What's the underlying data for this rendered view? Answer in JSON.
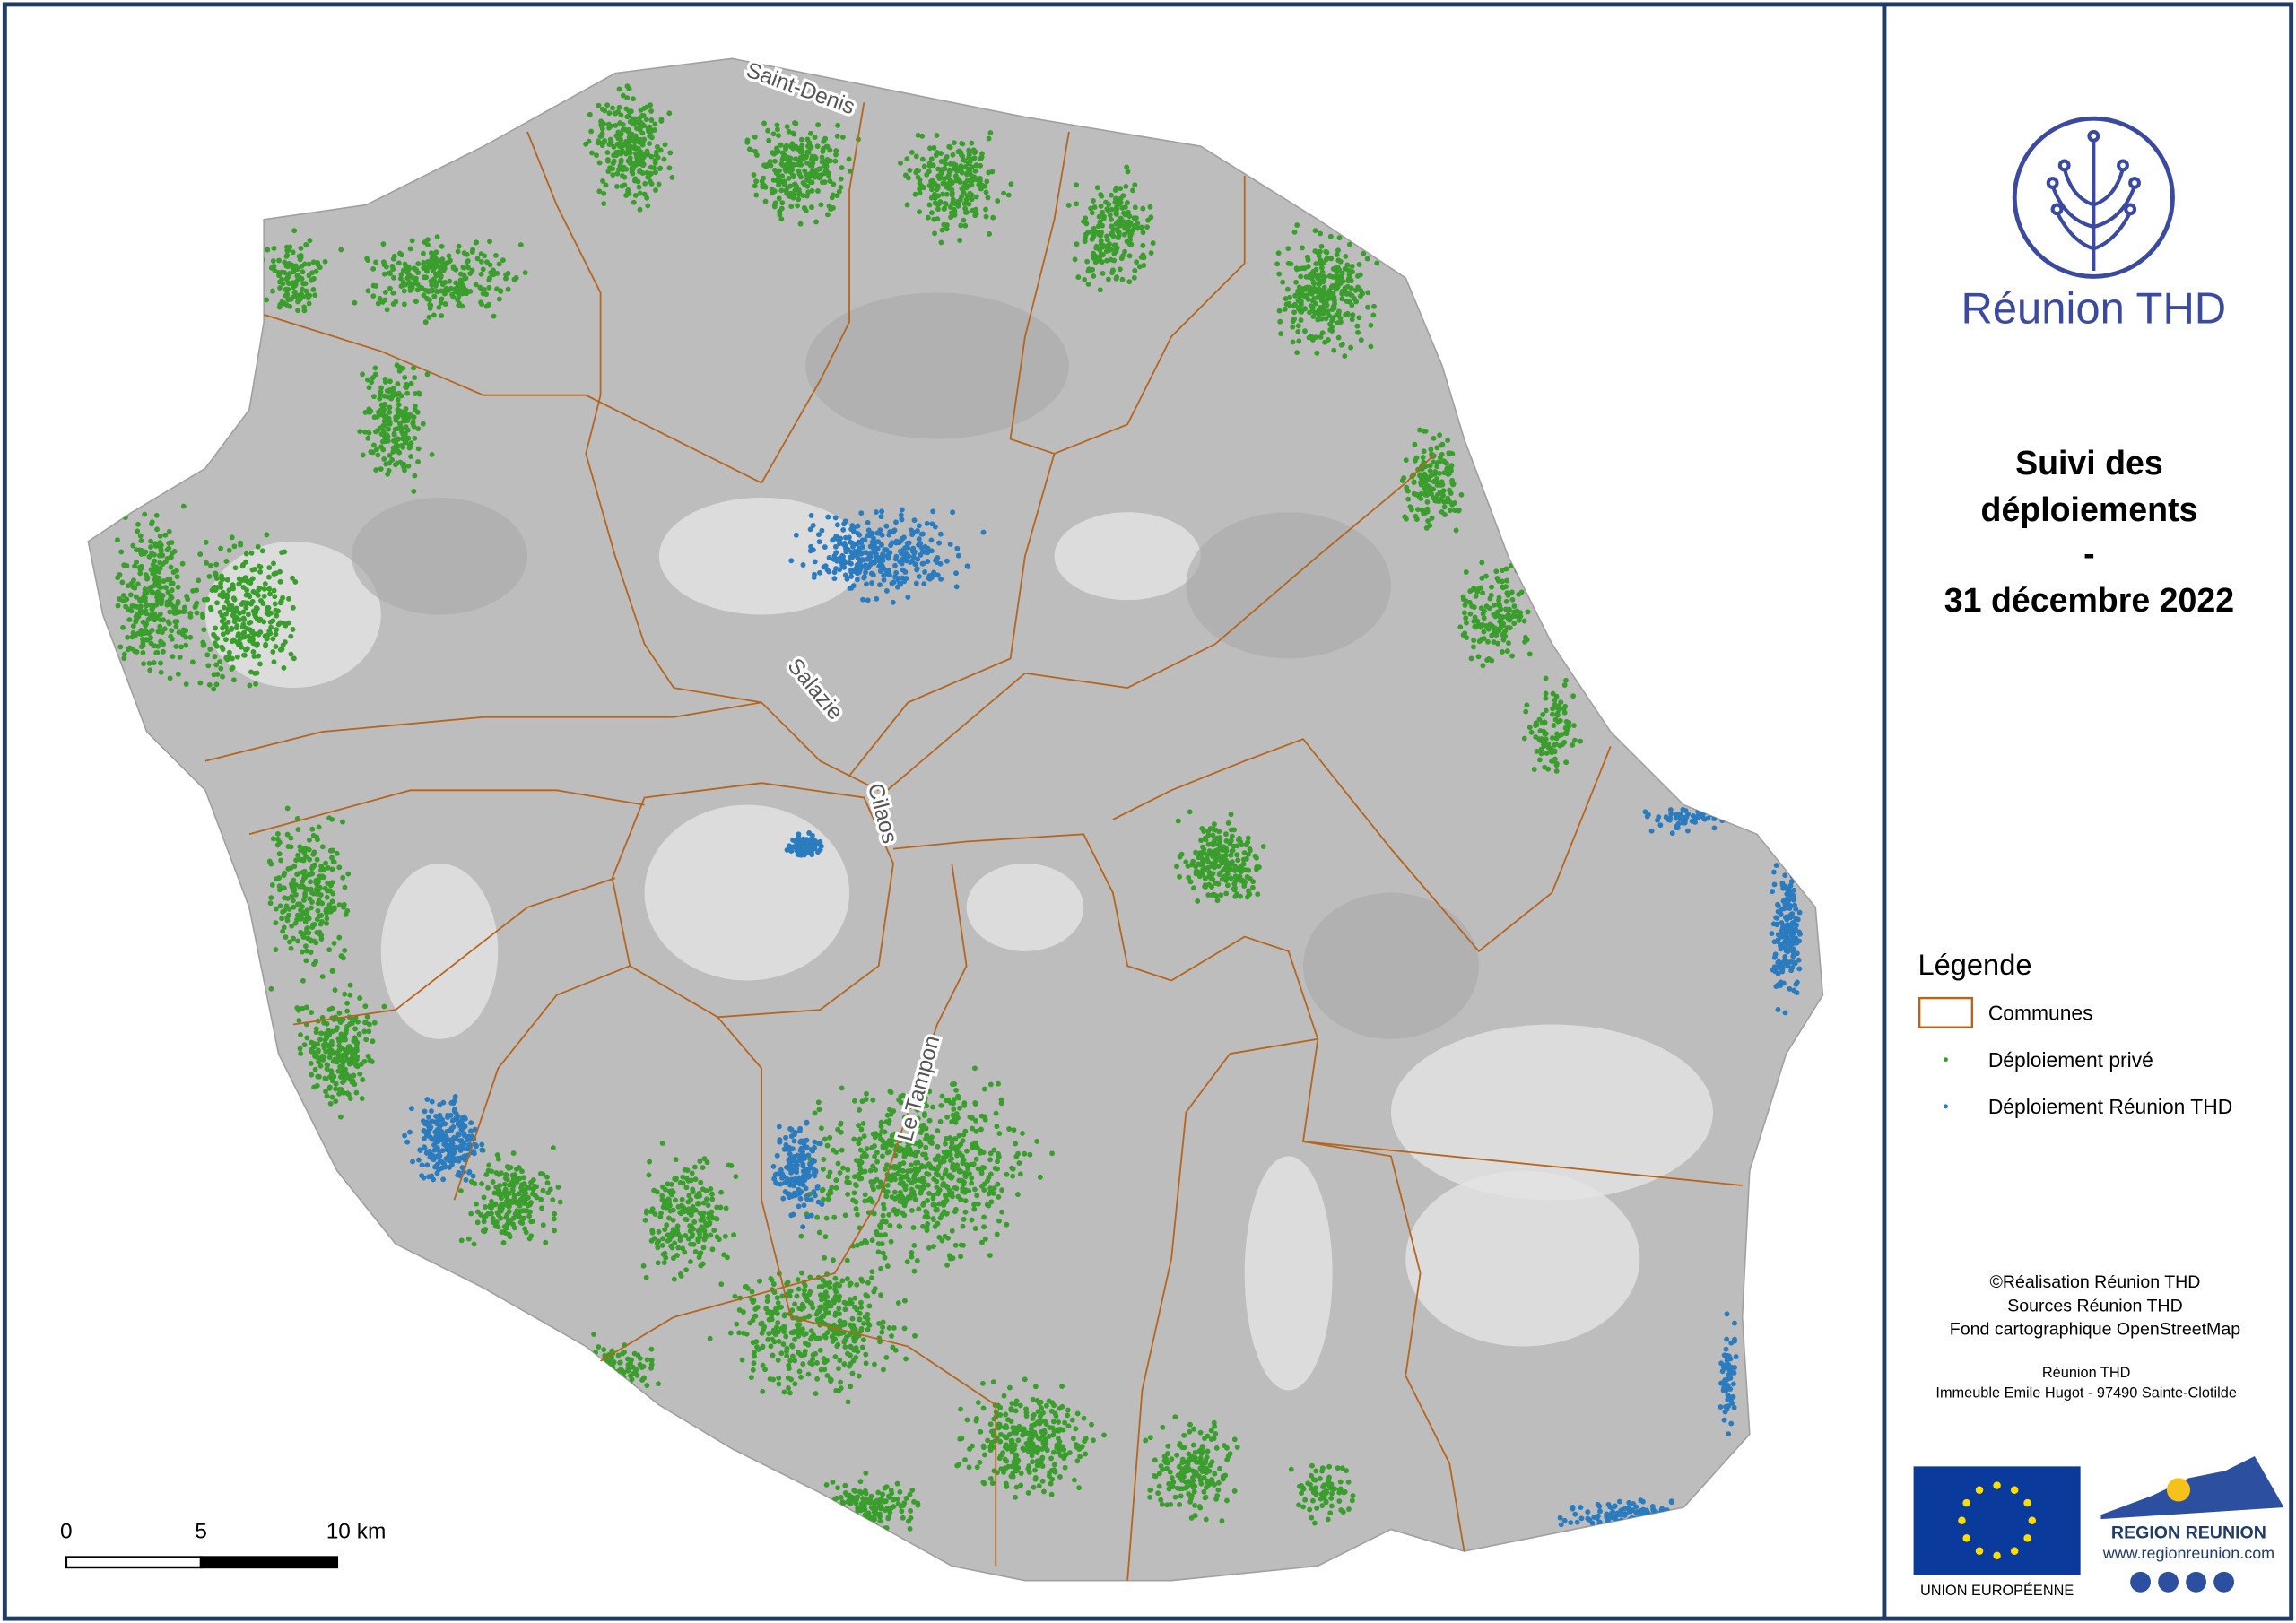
{
  "map": {
    "title": [
      "Suivi des",
      "déploiements",
      "-",
      "31 décembre 2022"
    ],
    "logo_text": "Réunion THD",
    "legend": {
      "title": "Légende",
      "items": [
        "Communes",
        "Déploiement privé",
        "Déploiement Réunion THD"
      ]
    },
    "credits": [
      "©Réalisation Réunion THD",
      "Sources Réunion THD",
      "Fond cartographique OpenStreetMap"
    ],
    "address": [
      "Réunion THD",
      "Immeuble Emile Hugot - 97490 Sainte-Clotilde"
    ],
    "place_labels": [
      "Saint-Denis",
      "Salazie",
      "Cilaos",
      "Le Tampon"
    ],
    "scale_bar": [
      "0",
      "5",
      "10 km"
    ],
    "partners": [
      "UNION EUROPÉENNE",
      "REGION REUNION",
      "www.regionreunion.com"
    ]
  }
}
